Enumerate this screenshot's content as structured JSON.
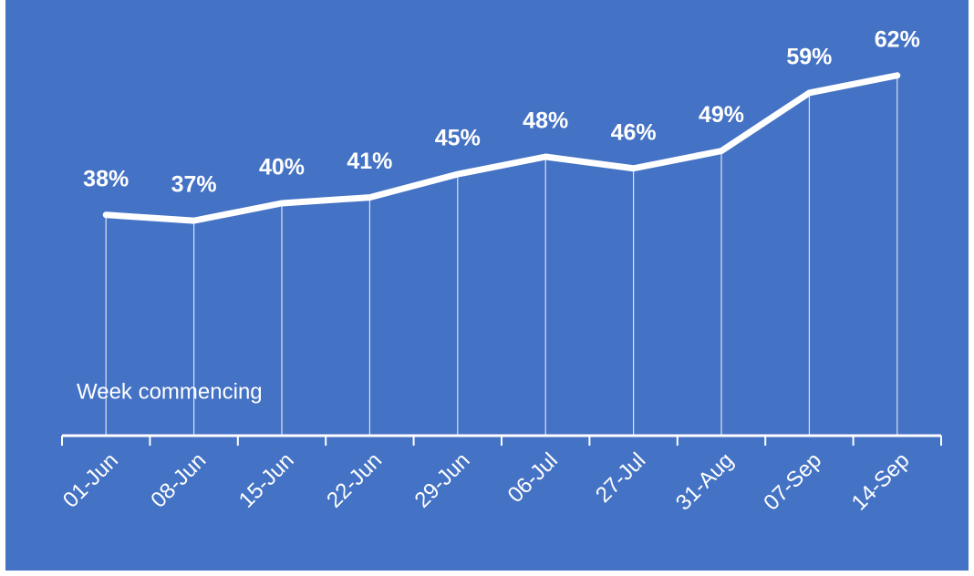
{
  "chart_data": {
    "type": "line",
    "x_label": "Week commencing",
    "categories": [
      "01-Jun",
      "08-Jun",
      "15-Jun",
      "22-Jun",
      "29-Jun",
      "06-Jul",
      "27-Jul",
      "31-Aug",
      "07-Sep",
      "14-Sep"
    ],
    "values": [
      38,
      37,
      40,
      41,
      45,
      48,
      46,
      49,
      59,
      62
    ],
    "value_labels": [
      "38%",
      "37%",
      "40%",
      "41%",
      "45%",
      "48%",
      "46%",
      "49%",
      "59%",
      "62%"
    ],
    "color": "#ffffff",
    "background": "#4472c4"
  }
}
